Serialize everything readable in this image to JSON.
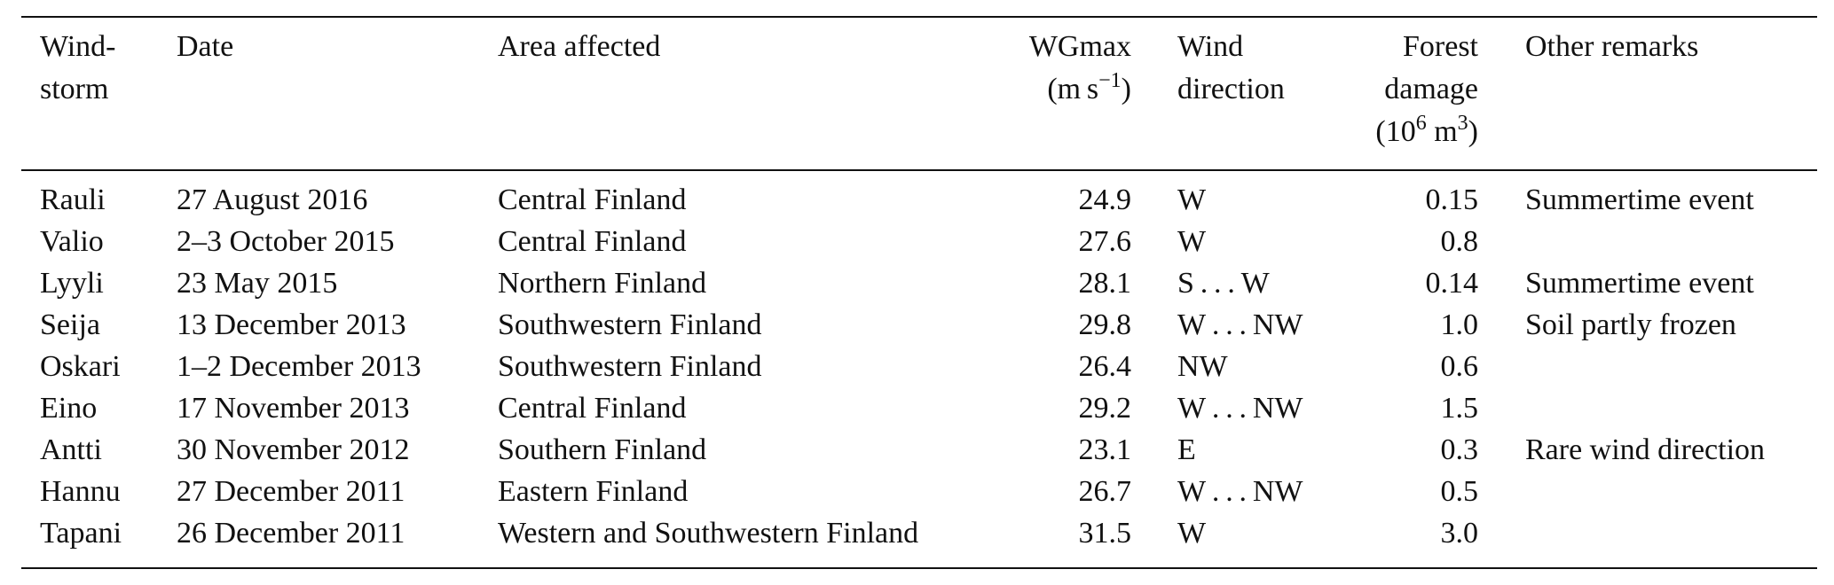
{
  "table": {
    "header": [
      {
        "lines": [
          "Wind-",
          "storm"
        ]
      },
      {
        "lines": [
          "Date"
        ]
      },
      {
        "lines": [
          "Area affected"
        ]
      },
      {
        "lines": [
          "WGmax"
        ],
        "unit": [
          "(m s",
          "−1",
          ")"
        ]
      },
      {
        "lines": [
          "Wind",
          "direction"
        ]
      },
      {
        "lines": [
          "Forest",
          "damage"
        ],
        "unit": [
          "(10",
          "6",
          " m",
          "3",
          ")"
        ]
      },
      {
        "lines": [
          "Other remarks"
        ]
      }
    ],
    "rows": [
      [
        "Rauli",
        "27 August 2016",
        "Central Finland",
        "24.9",
        "W",
        "0.15",
        "Summertime event"
      ],
      [
        "Valio",
        "2–3 October 2015",
        "Central Finland",
        "27.6",
        "W",
        "0.8",
        null
      ],
      [
        "Lyyli",
        "23 May 2015",
        "Northern Finland",
        "28.1",
        "S . . . W",
        "0.14",
        "Summertime event"
      ],
      [
        "Seija",
        "13 December 2013",
        "Southwestern Finland",
        "29.8",
        "W . . . NW",
        "1.0",
        "Soil partly frozen"
      ],
      [
        "Oskari",
        "1–2 December 2013",
        "Southwestern Finland",
        "26.4",
        "NW",
        "0.6",
        null
      ],
      [
        "Eino",
        "17 November 2013",
        "Central Finland",
        "29.2",
        "W . . . NW",
        "1.5",
        null
      ],
      [
        "Antti",
        "30 November 2012",
        "Southern Finland",
        "23.1",
        "E",
        "0.3",
        "Rare wind direction"
      ],
      [
        "Hannu",
        "27 December 2011",
        "Eastern Finland",
        "26.7",
        "W . . . NW",
        "0.5",
        null
      ],
      [
        "Tapani",
        "26 December 2011",
        "Western and Southwestern Finland",
        "31.5",
        "W",
        "3.0",
        null
      ]
    ]
  }
}
